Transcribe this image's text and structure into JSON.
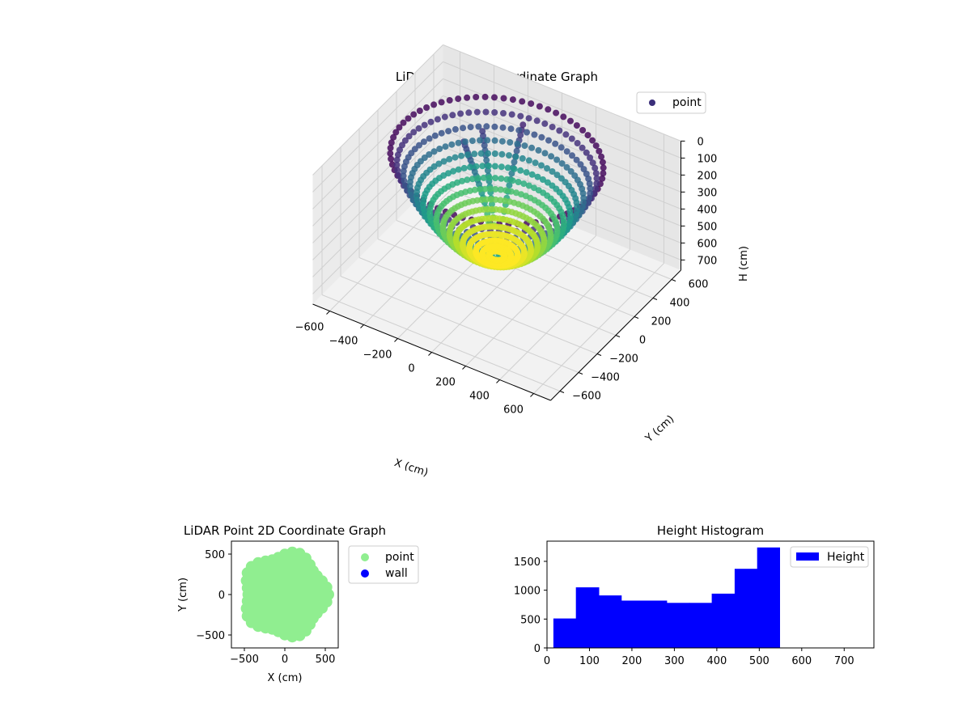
{
  "chart_data": [
    {
      "type": "scatter3d",
      "title": "LiDAR Point 3D Coordinate Graph",
      "xlabel": "X (cm)",
      "ylabel": "Y (cm)",
      "zlabel": "H (cm)",
      "xlim": [
        -700,
        700
      ],
      "ylim": [
        -700,
        700
      ],
      "zlim": [
        0,
        760
      ],
      "z_inverted": true,
      "xticks": [
        "−600",
        "−400",
        "−200",
        "0",
        "200",
        "400",
        "600"
      ],
      "yticks": [
        "−600",
        "−400",
        "−200",
        "0",
        "200",
        "400",
        "600"
      ],
      "zticks": [
        "0",
        "100",
        "200",
        "300",
        "400",
        "500",
        "600",
        "700"
      ],
      "legend": {
        "position": "top-right",
        "entries": [
          {
            "label": "point",
            "color": "#3b2f7a"
          }
        ]
      },
      "colormap": "viridis",
      "series": [
        {
          "name": "point",
          "shape": "bowl",
          "radius_max": 550,
          "height_max": 560,
          "branches": [
            {
              "angle_deg": 100,
              "r_start": 60,
              "r_end": 420,
              "h_start": 520,
              "h_end": 60
            },
            {
              "angle_deg": 130,
              "r_start": 60,
              "r_end": 380,
              "h_start": 500,
              "h_end": 100
            },
            {
              "angle_deg": 150,
              "r_start": 80,
              "r_end": 330,
              "h_start": 430,
              "h_end": 110
            }
          ]
        }
      ]
    },
    {
      "type": "scatter",
      "title": "LiDAR Point 2D Coordinate Graph",
      "xlabel": "X (cm)",
      "ylabel": "Y (cm)",
      "xlim": [
        -660,
        660
      ],
      "ylim": [
        -660,
        660
      ],
      "xticks": [
        "−500",
        "0",
        "500"
      ],
      "yticks": [
        "500",
        "0",
        "−500"
      ],
      "legend": {
        "position": "outside-right",
        "entries": [
          {
            "label": "point",
            "color": "#90ee90"
          },
          {
            "label": "wall",
            "color": "#0000ff"
          }
        ]
      },
      "series": [
        {
          "name": "point",
          "color": "#90ee90",
          "shape": "disc",
          "radius": 540
        },
        {
          "name": "wall",
          "color": "#0000ff",
          "points": []
        }
      ]
    },
    {
      "type": "histogram",
      "title": "Height Histogram",
      "xlim": [
        0,
        770
      ],
      "ylim": [
        0,
        1850
      ],
      "xticks": [
        "0",
        "100",
        "200",
        "300",
        "400",
        "500",
        "600",
        "700"
      ],
      "yticks": [
        "0",
        "500",
        "1000",
        "1500"
      ],
      "legend": {
        "position": "top-right",
        "entries": [
          {
            "label": "Height",
            "color": "#0000ff"
          }
        ]
      },
      "color": "#0000ff",
      "bins": [
        {
          "start": 15,
          "end": 68,
          "count": 510
        },
        {
          "start": 68,
          "end": 122,
          "count": 1050
        },
        {
          "start": 122,
          "end": 175,
          "count": 910
        },
        {
          "start": 175,
          "end": 228,
          "count": 820
        },
        {
          "start": 228,
          "end": 282,
          "count": 820
        },
        {
          "start": 282,
          "end": 335,
          "count": 780
        },
        {
          "start": 335,
          "end": 388,
          "count": 780
        },
        {
          "start": 388,
          "end": 442,
          "count": 940
        },
        {
          "start": 442,
          "end": 495,
          "count": 1370
        },
        {
          "start": 495,
          "end": 548,
          "count": 1740
        }
      ]
    }
  ]
}
